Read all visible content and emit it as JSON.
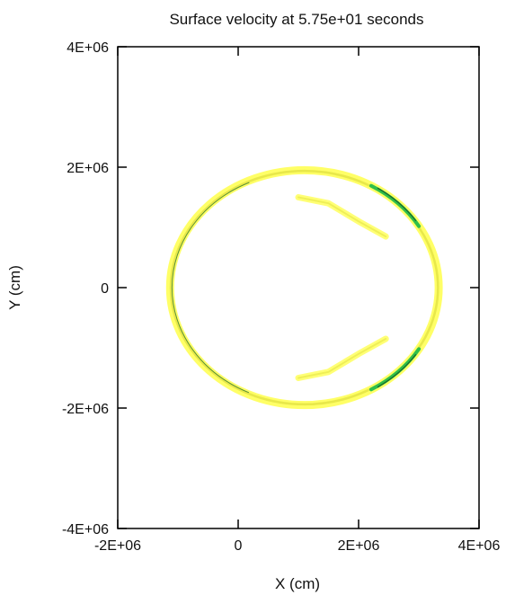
{
  "chart_data": {
    "type": "contour",
    "title": "Surface velocity at 5.75e+01 seconds",
    "xlabel": "X (cm)",
    "ylabel": "Y (cm)",
    "xlim": [
      -2000000,
      4000000
    ],
    "ylim": [
      -4000000,
      4000000
    ],
    "x_ticks": [
      -2000000,
      0,
      2000000,
      4000000
    ],
    "x_tick_labels": [
      "-2E+06",
      "0",
      "2E+06",
      "4E+06"
    ],
    "y_ticks": [
      -4000000,
      -2000000,
      0,
      2000000,
      4000000
    ],
    "y_tick_labels": [
      "-4E+06",
      "-2E+06",
      "0",
      "2E+06",
      "4E+06"
    ],
    "grid": false,
    "ring": {
      "center": [
        1100000,
        0
      ],
      "radius_x": 2230000,
      "radius_y": 1950000,
      "colors": [
        "#ffff66",
        "#e8e84a",
        "#2fbf4a",
        "#1a6a2a"
      ]
    },
    "inner_streaks": [
      {
        "points": [
          [
            1000000,
            1500000
          ],
          [
            1500000,
            1400000
          ],
          [
            2000000,
            1100000
          ],
          [
            2450000,
            850000
          ]
        ]
      },
      {
        "points": [
          [
            1000000,
            -1500000
          ],
          [
            1500000,
            -1400000
          ],
          [
            2000000,
            -1100000
          ],
          [
            2450000,
            -850000
          ]
        ]
      }
    ]
  }
}
